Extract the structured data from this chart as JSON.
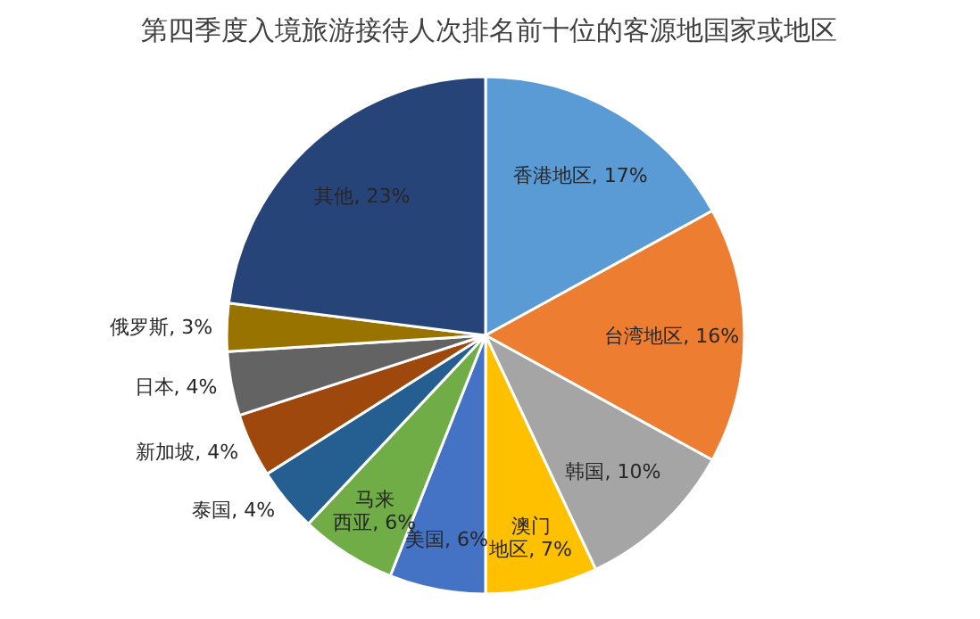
{
  "chart_data": {
    "type": "pie",
    "title": "第四季度入境旅游接待人次排名前十位的客源地国家或地区",
    "categories": [
      "香港地区",
      "台湾地区",
      "韩国",
      "澳门地区",
      "美国",
      "马来西亚",
      "泰国",
      "新加坡",
      "日本",
      "俄罗斯",
      "其他"
    ],
    "values": [
      17,
      16,
      10,
      7,
      6,
      6,
      4,
      4,
      4,
      3,
      23
    ],
    "value_labels": [
      "17%",
      "16%",
      "10%",
      "7%",
      "6%",
      "6%",
      "4%",
      "4%",
      "4%",
      "3%",
      "23%"
    ],
    "colors": [
      "#5b9bd5",
      "#ed7d31",
      "#a5a5a5",
      "#ffc000",
      "#4472c4",
      "#70ad47",
      "#255e91",
      "#9e480e",
      "#636363",
      "#997300",
      "#264478"
    ]
  }
}
